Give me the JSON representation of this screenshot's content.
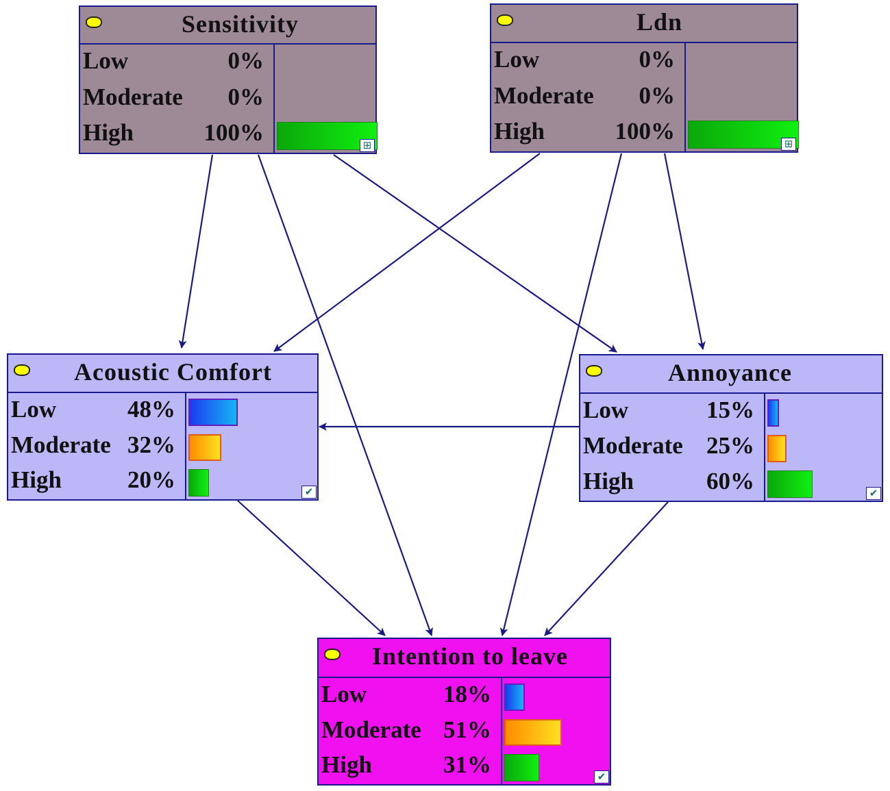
{
  "colors": {
    "edge": "#1a1a80",
    "evidence_node": "#9e8a96",
    "belief_node": "#bcb8f8",
    "target_node": "#f010f0",
    "low_bar": "#1a6af0",
    "moderate_bar": "#ffa500",
    "high_bar": "#10c010"
  },
  "nodes": [
    {
      "id": "sensitivity",
      "title": "Sensitivity",
      "type": "evidence",
      "corner_icon": "grid-icon",
      "states": [
        {
          "label": "Low",
          "pct": "0%",
          "value": 0
        },
        {
          "label": "Moderate",
          "pct": "0%",
          "value": 0
        },
        {
          "label": "High",
          "pct": "100%",
          "value": 100
        }
      ]
    },
    {
      "id": "ldn",
      "title": "Ldn",
      "type": "evidence",
      "corner_icon": "grid-icon",
      "states": [
        {
          "label": "Low",
          "pct": "0%",
          "value": 0
        },
        {
          "label": "Moderate",
          "pct": "0%",
          "value": 0
        },
        {
          "label": "High",
          "pct": "100%",
          "value": 100
        }
      ]
    },
    {
      "id": "acoustic-comfort",
      "title": "Acoustic Comfort",
      "type": "belief",
      "corner_icon": "checkmark-icon",
      "states": [
        {
          "label": "Low",
          "pct": "48%",
          "value": 48
        },
        {
          "label": "Moderate",
          "pct": "32%",
          "value": 32
        },
        {
          "label": "High",
          "pct": "20%",
          "value": 20
        }
      ]
    },
    {
      "id": "annoyance",
      "title": "Annoyance",
      "type": "belief",
      "corner_icon": "checkmark-icon",
      "states": [
        {
          "label": "Low",
          "pct": "15%",
          "value": 15
        },
        {
          "label": "Moderate",
          "pct": "25%",
          "value": 25
        },
        {
          "label": "High",
          "pct": "60%",
          "value": 60
        }
      ]
    },
    {
      "id": "intention-to-leave",
      "title": "Intention to leave",
      "type": "target",
      "corner_icon": "checkmark-icon",
      "states": [
        {
          "label": "Low",
          "pct": "18%",
          "value": 18
        },
        {
          "label": "Moderate",
          "pct": "51%",
          "value": 51
        },
        {
          "label": "High",
          "pct": "31%",
          "value": 31
        }
      ]
    }
  ],
  "edges": [
    {
      "from": "sensitivity",
      "to": "acoustic-comfort"
    },
    {
      "from": "sensitivity",
      "to": "intention-to-leave"
    },
    {
      "from": "sensitivity",
      "to": "annoyance"
    },
    {
      "from": "ldn",
      "to": "acoustic-comfort"
    },
    {
      "from": "ldn",
      "to": "intention-to-leave"
    },
    {
      "from": "ldn",
      "to": "annoyance"
    },
    {
      "from": "annoyance",
      "to": "acoustic-comfort"
    },
    {
      "from": "acoustic-comfort",
      "to": "intention-to-leave"
    },
    {
      "from": "annoyance",
      "to": "intention-to-leave"
    }
  ]
}
